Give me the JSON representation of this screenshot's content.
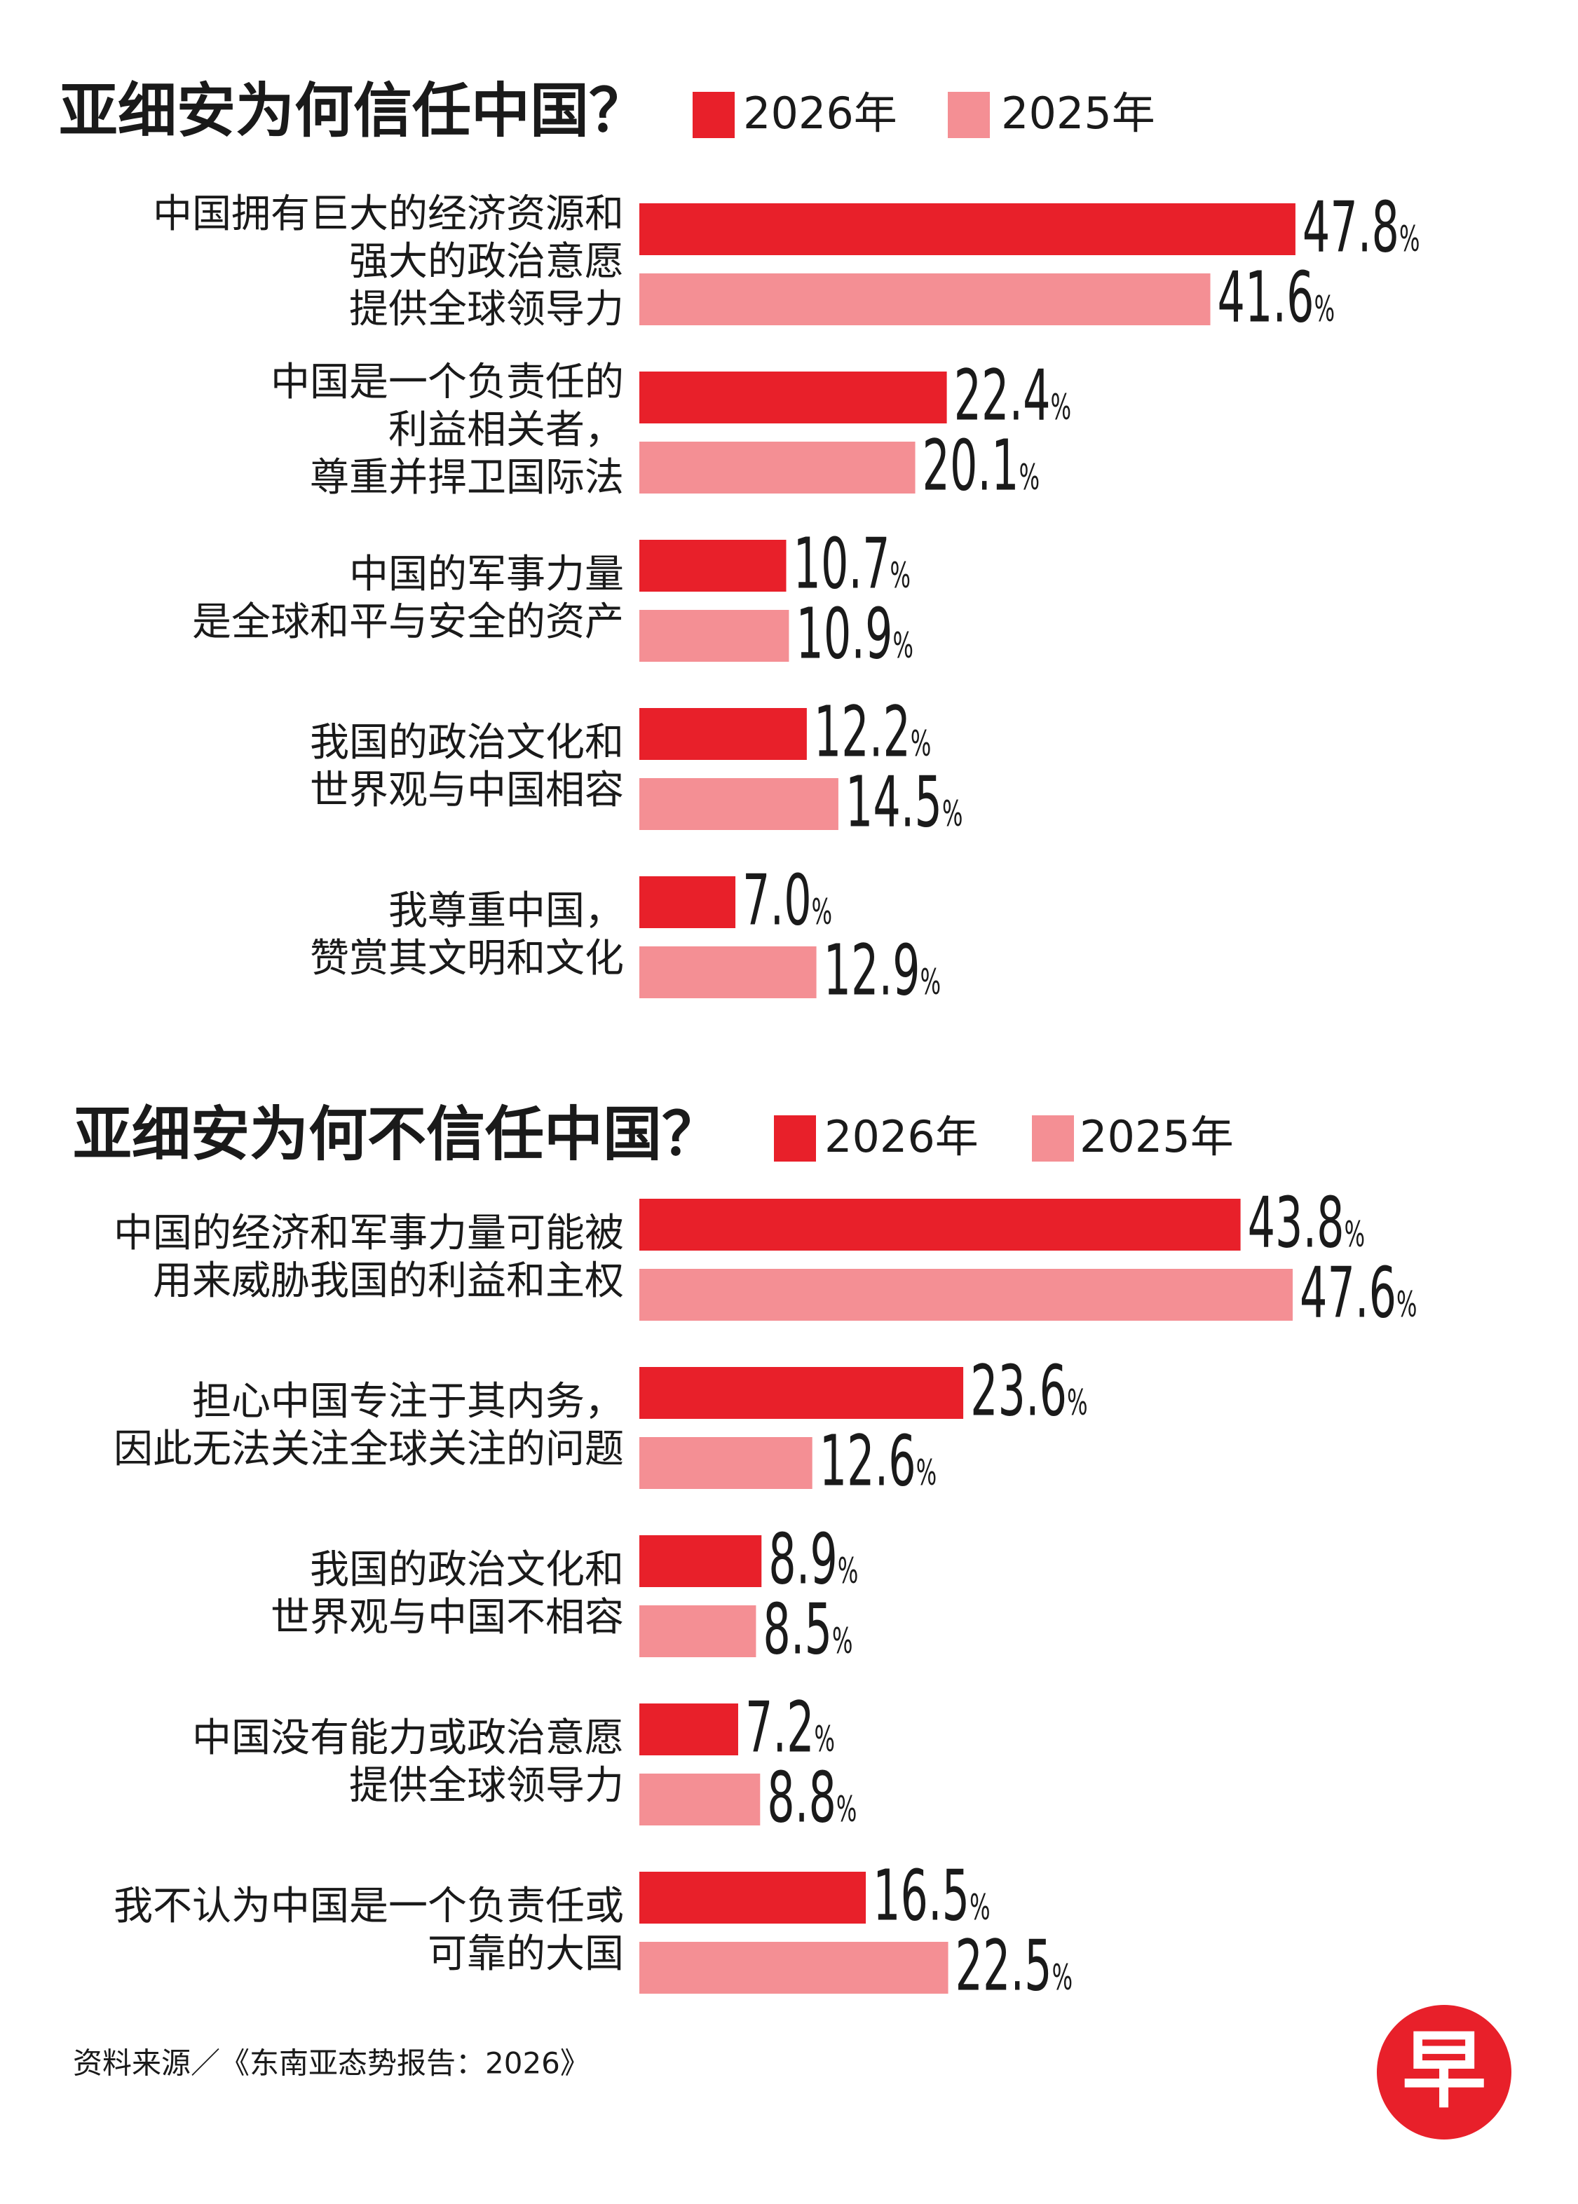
{
  "chart_data": [
    {
      "type": "bar",
      "orientation": "horizontal",
      "title": "亚细安为何信任中国？",
      "categories": [
        [
          "中国拥有巨大的经济资源和",
          "强大的政治意愿",
          "提供全球领导力"
        ],
        [
          "中国是一个负责任的",
          "利益相关者，",
          "尊重并捍卫国际法"
        ],
        [
          "中国的军事力量",
          "是全球和平与安全的资产"
        ],
        [
          "我国的政治文化和",
          "世界观与中国相容"
        ],
        [
          "我尊重中国，",
          "赞赏其文明和文化"
        ]
      ],
      "series": [
        {
          "name": "2026年",
          "color": "#e8202a",
          "values": [
            47.8,
            22.4,
            10.7,
            12.2,
            7.0
          ],
          "value_labels": [
            "47.8%",
            "22.4%",
            "10.7%",
            "12.2%",
            "7.0%"
          ]
        },
        {
          "name": "2025年",
          "color": "#f48f94",
          "values": [
            41.6,
            20.1,
            10.9,
            14.5,
            12.9
          ],
          "value_labels": [
            "41.6%",
            "20.1%",
            "10.9%",
            "14.5%",
            "12.9%"
          ]
        }
      ]
    },
    {
      "type": "bar",
      "orientation": "horizontal",
      "title": "亚细安为何不信任中国？",
      "categories": [
        [
          "中国的经济和军事力量可能被",
          "用来威胁我国的利益和主权"
        ],
        [
          "担心中国专注于其内务，",
          "因此无法关注全球关注的问题"
        ],
        [
          "我国的政治文化和",
          "世界观与中国不相容"
        ],
        [
          "中国没有能力或政治意愿",
          "提供全球领导力"
        ],
        [
          "我不认为中国是一个负责任或",
          "可靠的大国"
        ]
      ],
      "series": [
        {
          "name": "2026年",
          "color": "#e8202a",
          "values": [
            43.8,
            23.6,
            8.9,
            7.2,
            16.5
          ],
          "value_labels": [
            "43.8%",
            "23.6%",
            "8.9%",
            "7.2%",
            "16.5%"
          ]
        },
        {
          "name": "2025年",
          "color": "#f48f94",
          "values": [
            47.6,
            12.6,
            8.5,
            8.8,
            22.5
          ],
          "value_labels": [
            "47.6%",
            "12.6%",
            "8.5%",
            "8.8%",
            "22.5%"
          ]
        }
      ]
    }
  ],
  "source": "资料来源／《东南亚态势报告：2026》",
  "logo": "早"
}
